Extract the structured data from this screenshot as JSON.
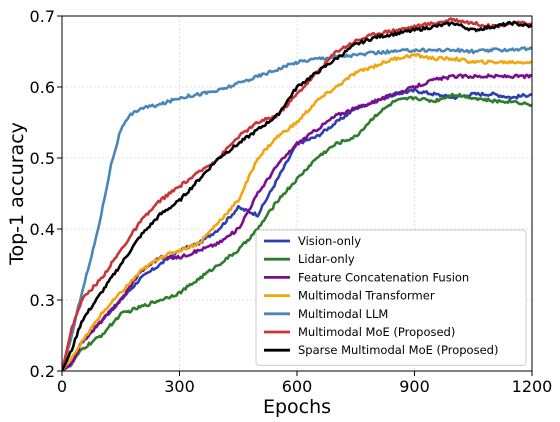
{
  "chart_data": {
    "type": "line",
    "title": "",
    "xlabel": "Epochs",
    "ylabel": "Top-1 accuracy",
    "xlim": [
      0,
      1200
    ],
    "ylim": [
      0.2,
      0.7
    ],
    "xticks": [
      "0",
      "300",
      "600",
      "900",
      "1200"
    ],
    "xtick_values": [
      0,
      300,
      600,
      900,
      1200
    ],
    "yticks": [
      "0.2",
      "0.3",
      "0.4",
      "0.5",
      "0.6",
      "0.7"
    ],
    "ytick_values": [
      0.2,
      0.3,
      0.4,
      0.5,
      0.6,
      0.7
    ],
    "grid": true,
    "legend_position": "bottom-right",
    "series": [
      {
        "name": "Vision-only",
        "color": "#2b3fb0",
        "x": [
          0,
          25,
          50,
          100,
          150,
          200,
          250,
          300,
          350,
          400,
          450,
          500,
          550,
          600,
          650,
          700,
          750,
          800,
          850,
          900,
          950,
          1000,
          1050,
          1100,
          1150,
          1200
        ],
        "y": [
          0.2,
          0.21,
          0.24,
          0.27,
          0.3,
          0.33,
          0.35,
          0.37,
          0.38,
          0.4,
          0.43,
          0.42,
          0.47,
          0.52,
          0.53,
          0.55,
          0.57,
          0.58,
          0.59,
          0.595,
          0.59,
          0.585,
          0.59,
          0.59,
          0.585,
          0.59
        ]
      },
      {
        "name": "Lidar-only",
        "color": "#2e7d2e",
        "x": [
          0,
          25,
          50,
          100,
          150,
          200,
          250,
          300,
          350,
          400,
          450,
          500,
          550,
          600,
          650,
          700,
          750,
          800,
          850,
          900,
          950,
          1000,
          1050,
          1100,
          1150,
          1200
        ],
        "y": [
          0.2,
          0.21,
          0.23,
          0.25,
          0.28,
          0.29,
          0.3,
          0.31,
          0.33,
          0.35,
          0.37,
          0.4,
          0.44,
          0.47,
          0.5,
          0.52,
          0.53,
          0.56,
          0.58,
          0.585,
          0.58,
          0.59,
          0.585,
          0.58,
          0.58,
          0.575
        ]
      },
      {
        "name": "Feature Concatenation Fusion",
        "color": "#7b0e8e",
        "x": [
          0,
          25,
          50,
          100,
          150,
          200,
          250,
          300,
          350,
          400,
          450,
          500,
          550,
          600,
          650,
          700,
          750,
          800,
          850,
          900,
          950,
          1000,
          1050,
          1100,
          1150,
          1200
        ],
        "y": [
          0.2,
          0.21,
          0.24,
          0.27,
          0.3,
          0.34,
          0.36,
          0.36,
          0.37,
          0.38,
          0.4,
          0.45,
          0.49,
          0.52,
          0.54,
          0.56,
          0.57,
          0.58,
          0.59,
          0.6,
          0.61,
          0.615,
          0.615,
          0.615,
          0.615,
          0.615
        ]
      },
      {
        "name": "Multimodal Transformer",
        "color": "#f2a50c",
        "x": [
          0,
          25,
          50,
          100,
          150,
          200,
          250,
          300,
          350,
          400,
          450,
          500,
          550,
          600,
          650,
          700,
          750,
          800,
          850,
          900,
          950,
          1000,
          1050,
          1100,
          1150,
          1200
        ],
        "y": [
          0.2,
          0.22,
          0.24,
          0.28,
          0.31,
          0.34,
          0.36,
          0.37,
          0.38,
          0.41,
          0.44,
          0.5,
          0.53,
          0.55,
          0.58,
          0.6,
          0.62,
          0.63,
          0.64,
          0.645,
          0.64,
          0.64,
          0.635,
          0.635,
          0.635,
          0.635
        ]
      },
      {
        "name": "Multimodal LLM",
        "color": "#4a86b8",
        "x": [
          0,
          25,
          50,
          75,
          100,
          125,
          150,
          175,
          200,
          250,
          300,
          350,
          400,
          450,
          500,
          550,
          600,
          650,
          700,
          750,
          800,
          850,
          900,
          950,
          1000,
          1050,
          1100,
          1150,
          1200
        ],
        "y": [
          0.2,
          0.25,
          0.31,
          0.36,
          0.42,
          0.49,
          0.54,
          0.56,
          0.57,
          0.575,
          0.585,
          0.59,
          0.595,
          0.605,
          0.615,
          0.625,
          0.635,
          0.64,
          0.643,
          0.645,
          0.648,
          0.65,
          0.652,
          0.652,
          0.652,
          0.65,
          0.652,
          0.653,
          0.654
        ]
      },
      {
        "name": "Multimodal MoE (Proposed)",
        "color": "#cc3333",
        "x": [
          0,
          25,
          50,
          100,
          150,
          200,
          250,
          300,
          350,
          400,
          450,
          500,
          550,
          600,
          650,
          700,
          750,
          800,
          850,
          900,
          950,
          1000,
          1050,
          1100,
          1150,
          1200
        ],
        "y": [
          0.2,
          0.26,
          0.3,
          0.33,
          0.37,
          0.41,
          0.44,
          0.46,
          0.48,
          0.5,
          0.53,
          0.55,
          0.56,
          0.59,
          0.62,
          0.65,
          0.665,
          0.675,
          0.68,
          0.685,
          0.69,
          0.695,
          0.69,
          0.685,
          0.69,
          0.69
        ]
      },
      {
        "name": "Sparse Multimodal MoE (Proposed)",
        "color": "#000000",
        "x": [
          0,
          25,
          50,
          100,
          150,
          200,
          250,
          300,
          350,
          400,
          450,
          500,
          550,
          600,
          650,
          700,
          750,
          800,
          850,
          900,
          950,
          1000,
          1050,
          1100,
          1150,
          1200
        ],
        "y": [
          0.2,
          0.23,
          0.27,
          0.31,
          0.35,
          0.39,
          0.42,
          0.44,
          0.47,
          0.5,
          0.52,
          0.54,
          0.56,
          0.6,
          0.62,
          0.64,
          0.66,
          0.67,
          0.675,
          0.68,
          0.685,
          0.69,
          0.68,
          0.685,
          0.69,
          0.685
        ]
      }
    ]
  }
}
